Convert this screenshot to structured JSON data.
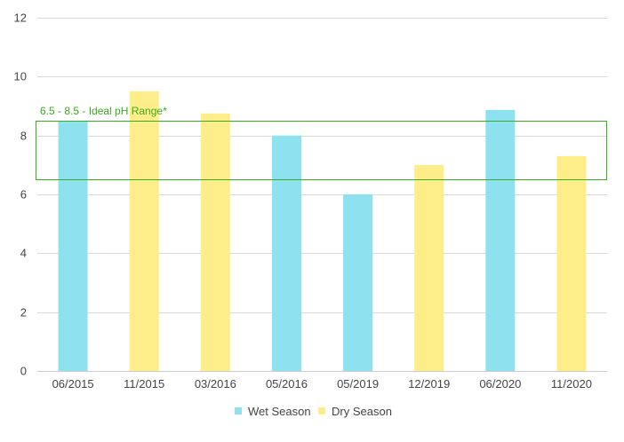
{
  "chart_data": {
    "type": "bar",
    "categories": [
      "06/2015",
      "11/2015",
      "03/2016",
      "05/2016",
      "05/2019",
      "12/2019",
      "06/2020",
      "11/2020"
    ],
    "values": [
      8.5,
      9.5,
      8.75,
      8.0,
      6.0,
      7.0,
      8.87,
      7.3
    ],
    "season": [
      "Wet Season",
      "Dry Season",
      "Dry Season",
      "Wet Season",
      "Wet Season",
      "Dry Season",
      "Wet Season",
      "Dry Season"
    ],
    "legend": [
      {
        "name": "Wet Season",
        "color": "#8ee1ee"
      },
      {
        "name": "Dry Season",
        "color": "#fdee8a"
      }
    ],
    "legend_position": "bottom",
    "ylim": [
      0,
      12
    ],
    "yticks": [
      0,
      2,
      4,
      6,
      8,
      10,
      12
    ],
    "grid": true,
    "annotation": {
      "text": "6.5 - 8.5 - Ideal pH Range*",
      "range": [
        6.5,
        8.5
      ],
      "color": "#3aaa1e"
    }
  }
}
